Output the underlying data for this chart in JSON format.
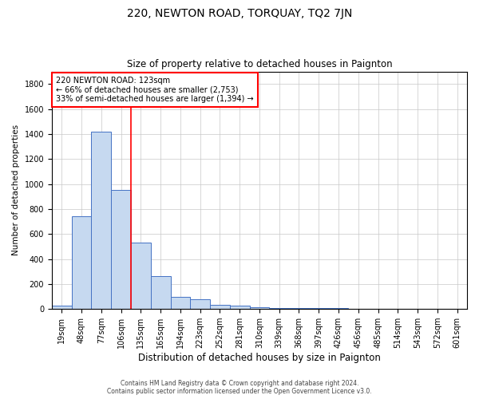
{
  "title": "220, NEWTON ROAD, TORQUAY, TQ2 7JN",
  "subtitle": "Size of property relative to detached houses in Paignton",
  "xlabel": "Distribution of detached houses by size in Paignton",
  "ylabel": "Number of detached properties",
  "categories": [
    "19sqm",
    "48sqm",
    "77sqm",
    "106sqm",
    "135sqm",
    "165sqm",
    "194sqm",
    "223sqm",
    "252sqm",
    "281sqm",
    "310sqm",
    "339sqm",
    "368sqm",
    "397sqm",
    "426sqm",
    "456sqm",
    "485sqm",
    "514sqm",
    "543sqm",
    "572sqm",
    "601sqm"
  ],
  "values": [
    25,
    740,
    1420,
    950,
    530,
    260,
    100,
    80,
    35,
    25,
    15,
    5,
    5,
    5,
    5,
    0,
    0,
    0,
    0,
    0,
    0
  ],
  "bar_color": "#c6d9f0",
  "bar_edge_color": "#4472c4",
  "property_line_x": 3.5,
  "annotation_text": "220 NEWTON ROAD: 123sqm\n← 66% of detached houses are smaller (2,753)\n33% of semi-detached houses are larger (1,394) →",
  "annotation_box_color": "#ffffff",
  "annotation_box_edge_color": "#ff0000",
  "vline_color": "#ff0000",
  "ylim": [
    0,
    1900
  ],
  "yticks": [
    0,
    200,
    400,
    600,
    800,
    1000,
    1200,
    1400,
    1600,
    1800
  ],
  "footer_line1": "Contains HM Land Registry data © Crown copyright and database right 2024.",
  "footer_line2": "Contains public sector information licensed under the Open Government Licence v3.0.",
  "background_color": "#ffffff",
  "grid_color": "#c8c8c8",
  "title_fontsize": 10,
  "subtitle_fontsize": 8.5,
  "ylabel_fontsize": 7.5,
  "xlabel_fontsize": 8.5,
  "tick_fontsize": 7,
  "annotation_fontsize": 7,
  "footer_fontsize": 5.5
}
